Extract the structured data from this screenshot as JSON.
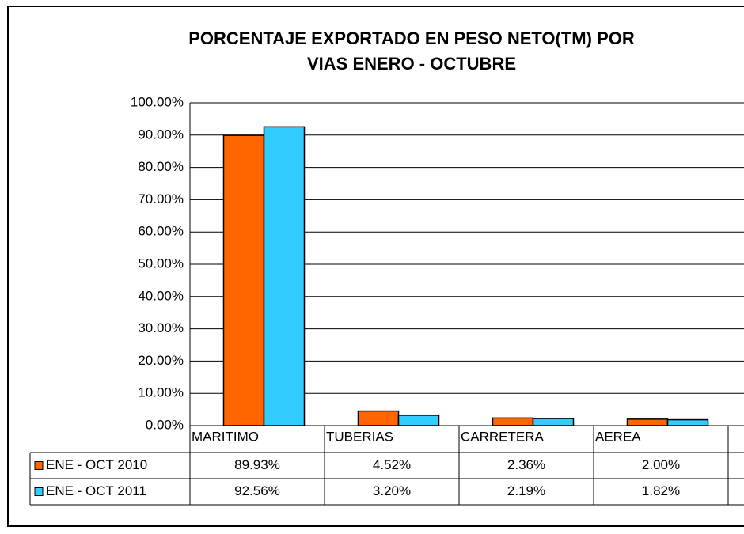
{
  "chart_data": {
    "type": "bar",
    "title": [
      "PORCENTAJE EXPORTADO EN PESO NETO(TM) POR",
      "VIAS ENERO - OCTUBRE"
    ],
    "categories": [
      "MARITIMO",
      "TUBERIAS",
      "CARRETERA",
      "AEREA"
    ],
    "series": [
      {
        "name": "ENE - OCT 2010",
        "color": "#ff6600",
        "values": [
          89.93,
          4.52,
          2.36,
          2.0
        ],
        "value_labels": [
          "89.93%",
          "4.52%",
          "2.36%",
          "2.00%"
        ]
      },
      {
        "name": "ENE - OCT 2011",
        "color": "#33ccff",
        "values": [
          92.56,
          3.2,
          2.19,
          1.82
        ],
        "value_labels": [
          "92.56%",
          "3.20%",
          "2.19%",
          "1.82%"
        ]
      }
    ],
    "ylim": [
      0,
      100
    ],
    "yticks": [
      {
        "value": 0,
        "label": "0.00%"
      },
      {
        "value": 10,
        "label": "10.00%"
      },
      {
        "value": 20,
        "label": "20.00%"
      },
      {
        "value": 30,
        "label": "30.00%"
      },
      {
        "value": 40,
        "label": "40.00%"
      },
      {
        "value": 50,
        "label": "50.00%"
      },
      {
        "value": 60,
        "label": "60.00%"
      },
      {
        "value": 70,
        "label": "70.00%"
      },
      {
        "value": 80,
        "label": "80.00%"
      },
      {
        "value": 90,
        "label": "90.00%"
      },
      {
        "value": 100,
        "label": "100.00%"
      }
    ],
    "grid": true
  }
}
